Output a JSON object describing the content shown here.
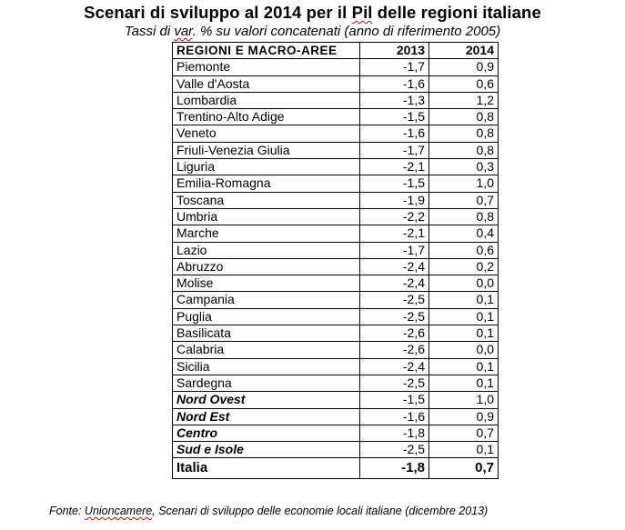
{
  "title": "Scenari di sviluppo al 2014 per il Pil delle regioni italiane",
  "title_parts": [
    "Scenari di sviluppo al 2014 per il ",
    "Pil",
    " delle regioni italiane"
  ],
  "subtitle_parts": [
    "Tassi di ",
    "var",
    ". % su valori concatenati (anno di riferimento 2005)"
  ],
  "table": {
    "headers": {
      "region": "REGIONI E MACRO-AREE",
      "y2013": "2013",
      "y2014": "2014"
    },
    "rows": [
      {
        "name": "Piemonte",
        "v2013": "-1,7",
        "v2014": "0,9"
      },
      {
        "name": "Valle d'Aosta",
        "v2013": "-1,6",
        "v2014": "0,6"
      },
      {
        "name": "Lombardia",
        "v2013": "-1,3",
        "v2014": "1,2"
      },
      {
        "name": "Trentino-Alto Adige",
        "v2013": "-1,5",
        "v2014": "0,8"
      },
      {
        "name": "Veneto",
        "v2013": "-1,6",
        "v2014": "0,8"
      },
      {
        "name": "Friuli-Venezia Giulia",
        "v2013": "-1,7",
        "v2014": "0,8"
      },
      {
        "name": "Liguria",
        "v2013": "-2,1",
        "v2014": "0,3"
      },
      {
        "name": "Emilia-Romagna",
        "v2013": "-1,5",
        "v2014": "1,0"
      },
      {
        "name": "Toscana",
        "v2013": "-1,9",
        "v2014": "0,7"
      },
      {
        "name": "Umbria",
        "v2013": "-2,2",
        "v2014": "0,8"
      },
      {
        "name": "Marche",
        "v2013": "-2,1",
        "v2014": "0,4"
      },
      {
        "name": "Lazio",
        "v2013": "-1,7",
        "v2014": "0,6"
      },
      {
        "name": "Abruzzo",
        "v2013": "-2,4",
        "v2014": "0,2"
      },
      {
        "name": "Molise",
        "v2013": "-2,4",
        "v2014": "0,0"
      },
      {
        "name": "Campania",
        "v2013": "-2,5",
        "v2014": "0,1"
      },
      {
        "name": "Puglia",
        "v2013": "-2,5",
        "v2014": "0,1"
      },
      {
        "name": "Basilicata",
        "v2013": "-2,6",
        "v2014": "0,1"
      },
      {
        "name": "Calabria",
        "v2013": "-2,6",
        "v2014": "0,0"
      },
      {
        "name": "Sicilia",
        "v2013": "-2,4",
        "v2014": "0,1"
      },
      {
        "name": "Sardegna",
        "v2013": "-2,5",
        "v2014": "0,1"
      }
    ],
    "macro_areas": [
      {
        "name": "Nord Ovest",
        "v2013": "-1,5",
        "v2014": "1,0"
      },
      {
        "name": "Nord Est",
        "v2013": "-1,6",
        "v2014": "0,9"
      },
      {
        "name": "Centro",
        "v2013": "-1,8",
        "v2014": "0,7"
      },
      {
        "name": "Sud e Isole",
        "v2013": "-2,5",
        "v2014": "0,1"
      }
    ],
    "total": {
      "name": "Italia",
      "v2013": "-1,8",
      "v2014": "0,7"
    }
  },
  "source_parts": [
    "Fonte: ",
    "Unioncamere",
    ", Scenari di sviluppo delle economie locali italiane (dicembre 2013)"
  ],
  "colors": {
    "spellcheck_underline": "#d00000",
    "text": "#000000",
    "background": "#ffffff"
  }
}
